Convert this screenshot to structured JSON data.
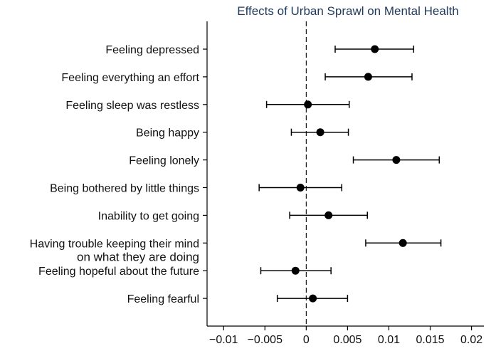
{
  "chart_data": {
    "type": "scatter",
    "subtype": "coefficient-plot-with-confidence-intervals",
    "title": "Effects of Urban Sprawl on Mental Health",
    "xlabel": "",
    "ylabel": "",
    "xlim": [
      -0.012,
      0.0215
    ],
    "xticks": [
      -0.01,
      -0.005,
      0,
      0.005,
      0.01,
      0.015,
      0.02
    ],
    "xtick_labels": [
      "−0.01",
      "−0.005",
      "0",
      "0.005",
      "0.01",
      "0.015",
      "0.02"
    ],
    "reference_line": {
      "x": 0,
      "style": "dashed"
    },
    "grid": false,
    "legend": "none",
    "series": [
      {
        "name": "Feeling depressed",
        "label_lines": [
          "Feeling depressed"
        ],
        "estimate": 0.0083,
        "ci_low": 0.0035,
        "ci_high": 0.013
      },
      {
        "name": "Feeling everything an effort",
        "label_lines": [
          "Feeling everything an effort"
        ],
        "estimate": 0.0075,
        "ci_low": 0.0023,
        "ci_high": 0.0128
      },
      {
        "name": "Feeling sleep was restless",
        "label_lines": [
          "Feeling sleep was restless"
        ],
        "estimate": 0.0002,
        "ci_low": -0.0048,
        "ci_high": 0.0052
      },
      {
        "name": "Being happy",
        "label_lines": [
          "Being happy"
        ],
        "estimate": 0.0017,
        "ci_low": -0.0018,
        "ci_high": 0.0051
      },
      {
        "name": "Feeling lonely",
        "label_lines": [
          "Feeling lonely"
        ],
        "estimate": 0.0109,
        "ci_low": 0.0057,
        "ci_high": 0.0161
      },
      {
        "name": "Being bothered by little things",
        "label_lines": [
          "Being bothered by little things"
        ],
        "estimate": -0.0007,
        "ci_low": -0.0057,
        "ci_high": 0.0043
      },
      {
        "name": "Inability to get going",
        "label_lines": [
          "Inability to get going"
        ],
        "estimate": 0.0027,
        "ci_low": -0.002,
        "ci_high": 0.0074
      },
      {
        "name": "Having trouble keeping their mind on what they are doing",
        "label_lines": [
          "Having trouble keeping their mind",
          "on what they are doing"
        ],
        "estimate": 0.0117,
        "ci_low": 0.0072,
        "ci_high": 0.0163
      },
      {
        "name": "Feeling hopeful about the future",
        "label_lines": [
          "Feeling hopeful about the future"
        ],
        "estimate": -0.0013,
        "ci_low": -0.0055,
        "ci_high": 0.003
      },
      {
        "name": "Feeling fearful",
        "label_lines": [
          "Feeling fearful"
        ],
        "estimate": 0.0008,
        "ci_low": -0.0035,
        "ci_high": 0.005
      }
    ]
  },
  "colors": {
    "title": "#1f3a5a",
    "axis": "#000000",
    "marker": "#000000",
    "text": "#111111"
  }
}
